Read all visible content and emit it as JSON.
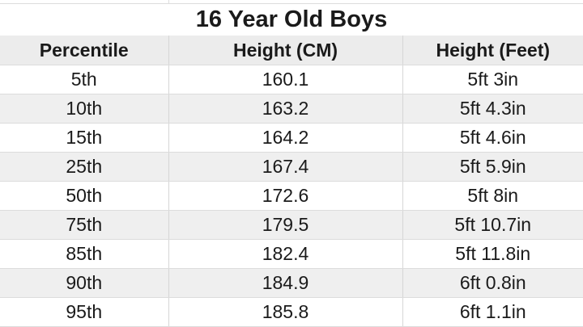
{
  "title": "16 Year Old Boys",
  "headers": [
    "Percentile",
    "Height (CM)",
    "Height (Feet)"
  ],
  "rows": [
    [
      "5th",
      "160.1",
      "5ft 3in"
    ],
    [
      "10th",
      "163.2",
      "5ft 4.3in"
    ],
    [
      "15th",
      "164.2",
      "5ft 4.6in"
    ],
    [
      "25th",
      "167.4",
      "5ft 5.9in"
    ],
    [
      "50th",
      "172.6",
      "5ft 8in"
    ],
    [
      "75th",
      "179.5",
      "5ft 10.7in"
    ],
    [
      "85th",
      "182.4",
      "5ft 11.8in"
    ],
    [
      "90th",
      "184.9",
      "6ft 0.8in"
    ],
    [
      "95th",
      "185.8",
      "6ft 1.1in"
    ]
  ]
}
